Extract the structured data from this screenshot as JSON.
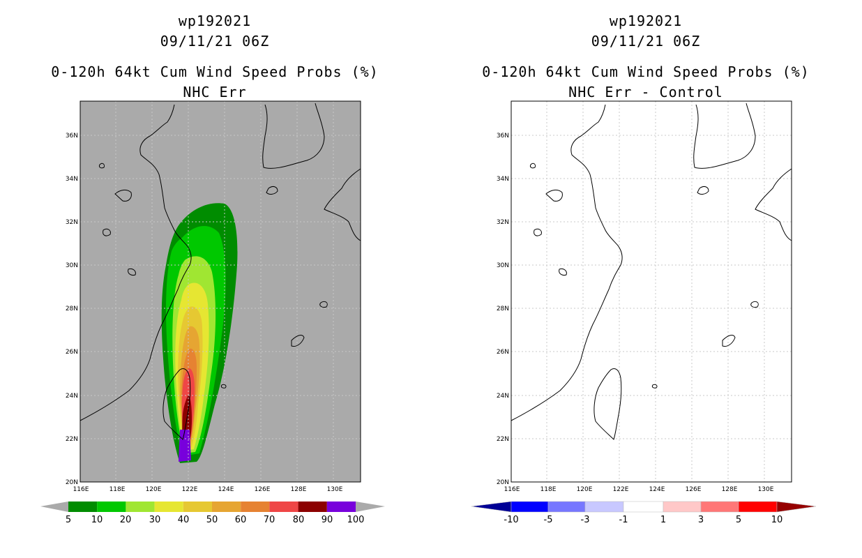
{
  "panels": [
    {
      "storm_id": "wp192021",
      "datetime": "09/11/21 06Z",
      "product": "0-120h 64kt Cum Wind Speed Probs (%)",
      "subtitle": "NHC Err",
      "background": "#aaaaaa",
      "lat_labels": [
        "36N",
        "34N",
        "32N",
        "30N",
        "28N",
        "26N",
        "24N",
        "22N",
        "20N"
      ],
      "lon_labels": [
        "116E",
        "118E",
        "120E",
        "122E",
        "124E",
        "126E",
        "128E",
        "130E"
      ],
      "colorbar_labels": [
        "5",
        "10",
        "20",
        "30",
        "40",
        "50",
        "60",
        "70",
        "80",
        "90",
        "100"
      ],
      "colorbar_colors": [
        "#008c00",
        "#00c800",
        "#00e600",
        "#a0e632",
        "#e6e632",
        "#e6c832",
        "#e6a532",
        "#e68232",
        "#ef4646",
        "#8c0000",
        "#7800dc"
      ]
    },
    {
      "storm_id": "wp192021",
      "datetime": "09/11/21 06Z",
      "product": "0-120h 64kt Cum Wind Speed Probs (%)",
      "subtitle": "NHC Err - Control",
      "background": "#ffffff",
      "lat_labels": [
        "36N",
        "34N",
        "32N",
        "30N",
        "28N",
        "26N",
        "24N",
        "22N",
        "20N"
      ],
      "lon_labels": [
        "116E",
        "118E",
        "120E",
        "122E",
        "124E",
        "126E",
        "128E",
        "130E"
      ],
      "colorbar_labels": [
        "-10",
        "-5",
        "-3",
        "-1",
        "1",
        "3",
        "5",
        "10"
      ],
      "colorbar_colors": [
        "#000096",
        "#0000ff",
        "#7777ff",
        "#c8c8ff",
        "#ffffff",
        "#ffc8c8",
        "#ff7777",
        "#ff0000",
        "#960000"
      ]
    }
  ],
  "probability_field": {
    "units": "%",
    "contour_levels": [
      5,
      10,
      20,
      30,
      40,
      50,
      60,
      70,
      80,
      90,
      100
    ],
    "max_center": {
      "lon": 121.7,
      "lat": 21.8
    }
  }
}
